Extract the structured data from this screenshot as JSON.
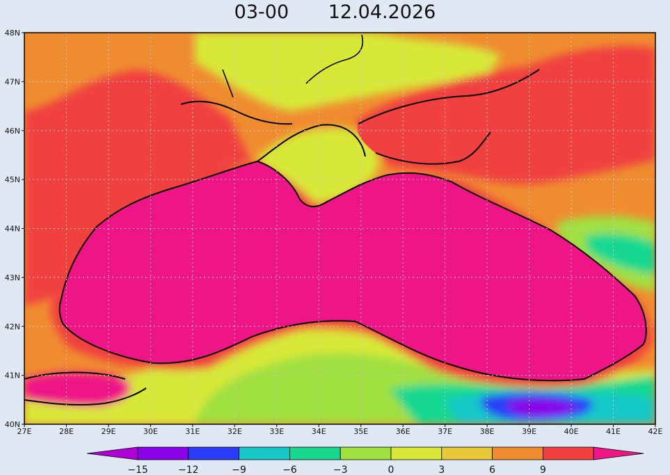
{
  "title": {
    "time": "03-00",
    "date": "12.04.2026"
  },
  "map": {
    "lon_range": [
      27,
      42
    ],
    "lat_range": [
      40,
      48
    ],
    "x_ticks": [
      "27E",
      "28E",
      "29E",
      "30E",
      "31E",
      "32E",
      "33E",
      "34E",
      "35E",
      "36E",
      "37E",
      "38E",
      "39E",
      "40E",
      "41E",
      "42E"
    ],
    "y_ticks": [
      "48N",
      "47N",
      "46N",
      "45N",
      "44N",
      "43N",
      "42N",
      "41N",
      "40N"
    ],
    "grid": true,
    "sea_color": "#ee1687"
  },
  "colorbar": {
    "labels": [
      "-15",
      "-12",
      "-9",
      "-6",
      "-3",
      "0",
      "3",
      "6",
      "9"
    ],
    "colors": [
      "#b000d8",
      "#8a00e8",
      "#2a3cf8",
      "#18c8c8",
      "#18d890",
      "#a0e040",
      "#d8e838",
      "#e8c838",
      "#f08c30",
      "#f04040",
      "#ee1687"
    ]
  }
}
